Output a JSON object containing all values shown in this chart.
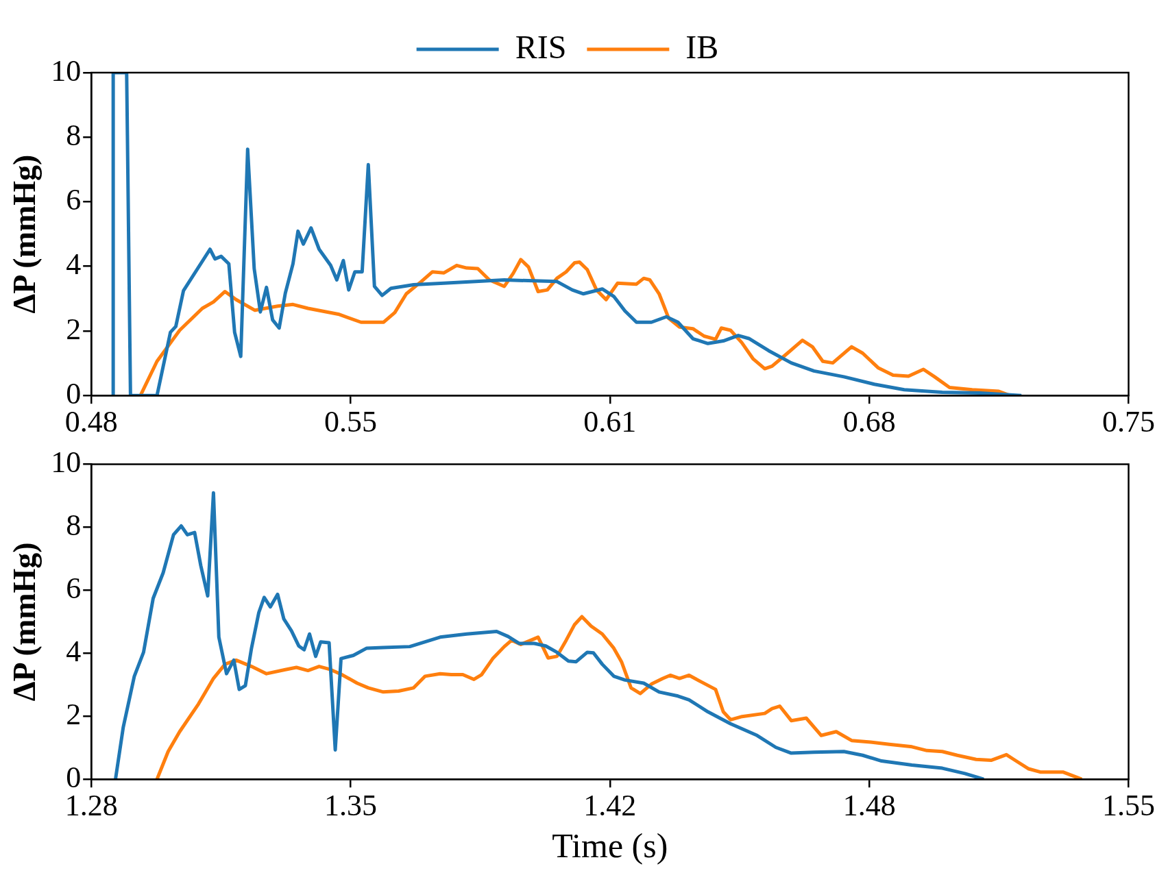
{
  "chart_data": [
    {
      "type": "line",
      "ylabel": "ΔP (mmHg)",
      "legend": "top",
      "grid": false,
      "marker": "none",
      "line_style": "solid",
      "xlim": [
        0.48,
        0.75
      ],
      "xticks": [
        0.48,
        {
          "value": 0.5475,
          "label": "0.55"
        },
        {
          "value": 0.615,
          "label": "0.61"
        },
        {
          "value": 0.6825,
          "label": "0.68"
        },
        0.75
      ],
      "ylim": [
        0,
        10
      ],
      "yticks": [
        0,
        2,
        4,
        6,
        8,
        10
      ],
      "series": [
        {
          "name": "RIS",
          "color": "#1f77b4",
          "x": [
            0.4857,
            0.4857,
            0.4892,
            0.4894,
            0.4902,
            0.4971,
            0.5006,
            0.502,
            0.504,
            0.5109,
            0.5122,
            0.5138,
            0.5158,
            0.5173,
            0.5189,
            0.5207,
            0.5224,
            0.524,
            0.5256,
            0.5272,
            0.5289,
            0.5305,
            0.5325,
            0.5338,
            0.5352,
            0.5372,
            0.5393,
            0.5423,
            0.5439,
            0.5456,
            0.547,
            0.5486,
            0.5505,
            0.5521,
            0.5537,
            0.5557,
            0.558,
            0.5639,
            0.5718,
            0.5875,
            0.6012,
            0.6052,
            0.6081,
            0.613,
            0.616,
            0.6189,
            0.6219,
            0.6258,
            0.6297,
            0.6327,
            0.6366,
            0.6405,
            0.6445,
            0.6484,
            0.6513,
            0.6563,
            0.6622,
            0.6681,
            0.6759,
            0.6838,
            0.6916,
            0.7015,
            0.7113,
            0.7221
          ],
          "values": [
            0,
            10,
            10,
            8.06,
            0,
            0,
            1.96,
            2.14,
            3.25,
            4.53,
            4.23,
            4.31,
            4.08,
            1.96,
            1.21,
            7.63,
            3.93,
            2.59,
            3.35,
            2.34,
            2.09,
            3.17,
            4.08,
            5.09,
            4.69,
            5.19,
            4.53,
            4.03,
            3.58,
            4.18,
            3.27,
            3.83,
            3.83,
            7.15,
            3.38,
            3.1,
            3.32,
            3.43,
            3.48,
            3.58,
            3.53,
            3.27,
            3.15,
            3.3,
            3.07,
            2.62,
            2.27,
            2.27,
            2.44,
            2.27,
            1.76,
            1.61,
            1.69,
            1.86,
            1.76,
            1.39,
            1.01,
            0.76,
            0.58,
            0.35,
            0.18,
            0.1,
            0.08,
            0
          ]
        },
        {
          "name": "IB",
          "color": "#ff7f0e",
          "x": [
            0.4928,
            0.4971,
            0.503,
            0.5089,
            0.5118,
            0.5148,
            0.5177,
            0.5226,
            0.5285,
            0.5325,
            0.5364,
            0.5443,
            0.5502,
            0.5561,
            0.559,
            0.562,
            0.5659,
            0.5688,
            0.5718,
            0.5751,
            0.5777,
            0.5806,
            0.5836,
            0.5875,
            0.5898,
            0.5918,
            0.5938,
            0.5963,
            0.5987,
            0.6012,
            0.6036,
            0.6058,
            0.6071,
            0.6091,
            0.6115,
            0.614,
            0.617,
            0.6219,
            0.6238,
            0.6254,
            0.6278,
            0.6303,
            0.6331,
            0.6366,
            0.6395,
            0.6425,
            0.644,
            0.6464,
            0.6493,
            0.6523,
            0.6553,
            0.6572,
            0.6612,
            0.6651,
            0.6677,
            0.6704,
            0.673,
            0.6779,
            0.6808,
            0.6848,
            0.6887,
            0.6927,
            0.6966,
            0.6995,
            0.7034,
            0.7093,
            0.7162,
            0.7191
          ],
          "values": [
            0,
            1.06,
            2.02,
            2.7,
            2.9,
            3.22,
            2.97,
            2.64,
            2.77,
            2.82,
            2.7,
            2.52,
            2.27,
            2.27,
            2.57,
            3.15,
            3.53,
            3.83,
            3.8,
            4.03,
            3.95,
            3.93,
            3.58,
            3.38,
            3.78,
            4.21,
            3.98,
            3.22,
            3.27,
            3.63,
            3.83,
            4.11,
            4.13,
            3.9,
            3.27,
            2.97,
            3.48,
            3.45,
            3.63,
            3.58,
            3.15,
            2.39,
            2.12,
            2.07,
            1.84,
            1.74,
            2.09,
            2.02,
            1.64,
            1.13,
            0.83,
            0.91,
            1.31,
            1.71,
            1.51,
            1.06,
            1.01,
            1.51,
            1.31,
            0.86,
            0.63,
            0.6,
            0.81,
            0.58,
            0.25,
            0.18,
            0.13,
            0
          ]
        }
      ]
    },
    {
      "type": "line",
      "xlabel": "Time (s)",
      "ylabel": "ΔP (mmHg)",
      "grid": false,
      "marker": "none",
      "line_style": "solid",
      "xlim": [
        1.28,
        1.55
      ],
      "xticks": [
        1.28,
        {
          "value": 1.3475,
          "label": "1.35"
        },
        {
          "value": 1.415,
          "label": "1.42"
        },
        {
          "value": 1.4825,
          "label": "1.48"
        },
        1.55
      ],
      "ylim": [
        0,
        10
      ],
      "yticks": [
        0,
        2,
        4,
        6,
        8,
        10
      ],
      "series": [
        {
          "color": "#1f77b4",
          "x": [
            1.2863,
            1.2883,
            1.2912,
            1.2936,
            1.2961,
            1.2987,
            1.3014,
            1.3034,
            1.305,
            1.3069,
            1.3085,
            1.3103,
            1.3118,
            1.3132,
            1.3152,
            1.3171,
            1.3185,
            1.3201,
            1.3217,
            1.3236,
            1.325,
            1.3266,
            1.3285,
            1.3301,
            1.3321,
            1.334,
            1.3354,
            1.3368,
            1.3384,
            1.3397,
            1.3419,
            1.3435,
            1.345,
            1.3482,
            1.3517,
            1.356,
            1.3629,
            1.3708,
            1.3777,
            1.3855,
            1.3885,
            1.3914,
            1.3953,
            1.3983,
            1.4012,
            1.4042,
            1.4062,
            1.4091,
            1.4107,
            1.413,
            1.416,
            1.4189,
            1.4238,
            1.4278,
            1.4327,
            1.4356,
            1.4405,
            1.4464,
            1.4533,
            1.4582,
            1.4622,
            1.4681,
            1.4759,
            1.4808,
            1.4857,
            1.4936,
            1.5015,
            1.5074,
            1.5123
          ],
          "values": [
            0,
            1.64,
            3.27,
            4.03,
            5.74,
            6.55,
            7.76,
            8.04,
            7.76,
            7.83,
            6.78,
            5.82,
            9.09,
            4.51,
            3.35,
            3.78,
            2.85,
            2.97,
            4.16,
            5.29,
            5.77,
            5.47,
            5.87,
            5.09,
            4.71,
            4.23,
            4.11,
            4.61,
            3.9,
            4.36,
            4.33,
            0.93,
            3.83,
            3.93,
            4.16,
            4.18,
            4.21,
            4.51,
            4.61,
            4.69,
            4.53,
            4.31,
            4.31,
            4.23,
            4.03,
            3.75,
            3.73,
            4.03,
            4.01,
            3.65,
            3.27,
            3.15,
            3.05,
            2.77,
            2.64,
            2.52,
            2.14,
            1.76,
            1.39,
            1.01,
            0.83,
            0.86,
            0.88,
            0.76,
            0.58,
            0.45,
            0.35,
            0.18,
            0
          ]
        },
        {
          "color": "#ff7f0e",
          "x": [
            1.2971,
            1.3,
            1.303,
            1.3079,
            1.3118,
            1.3148,
            1.3177,
            1.3217,
            1.3256,
            1.3305,
            1.3334,
            1.3364,
            1.3393,
            1.3423,
            1.3452,
            1.3492,
            1.3521,
            1.356,
            1.36,
            1.3639,
            1.3669,
            1.3708,
            1.3737,
            1.3767,
            1.3796,
            1.3816,
            1.3845,
            1.3875,
            1.3894,
            1.3918,
            1.3944,
            1.3963,
            1.3989,
            1.4012,
            1.4036,
            1.4058,
            1.4077,
            1.4101,
            1.413,
            1.416,
            1.418,
            1.4205,
            1.4229,
            1.4258,
            1.4288,
            1.4307,
            1.4331,
            1.4356,
            1.4386,
            1.4425,
            1.4445,
            1.4464,
            1.4494,
            1.4553,
            1.4572,
            1.4592,
            1.4622,
            1.4661,
            1.47,
            1.4739,
            1.4779,
            1.4828,
            1.4877,
            1.4936,
            1.4975,
            1.5015,
            1.5054,
            1.5103,
            1.5142,
            1.5182,
            1.5201,
            1.524,
            1.527,
            1.5329,
            1.5378
          ],
          "values": [
            0,
            0.88,
            1.51,
            2.39,
            3.2,
            3.65,
            3.78,
            3.58,
            3.35,
            3.48,
            3.55,
            3.45,
            3.58,
            3.48,
            3.32,
            3.05,
            2.9,
            2.77,
            2.8,
            2.9,
            3.27,
            3.35,
            3.32,
            3.32,
            3.17,
            3.32,
            3.83,
            4.21,
            4.41,
            4.28,
            4.41,
            4.51,
            3.85,
            3.9,
            4.41,
            4.91,
            5.16,
            4.86,
            4.61,
            4.16,
            3.73,
            2.9,
            2.72,
            3.02,
            3.2,
            3.3,
            3.2,
            3.3,
            3.1,
            2.85,
            2.14,
            1.89,
            1.99,
            2.09,
            2.24,
            2.32,
            1.86,
            1.94,
            1.39,
            1.51,
            1.23,
            1.18,
            1.11,
            1.03,
            0.91,
            0.88,
            0.76,
            0.63,
            0.6,
            0.78,
            0.63,
            0.33,
            0.23,
            0.23,
            0
          ]
        }
      ]
    }
  ]
}
